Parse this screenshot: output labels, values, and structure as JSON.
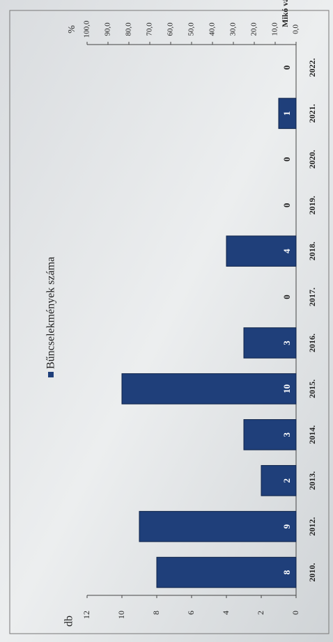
{
  "chart_data": {
    "type": "bar",
    "title": "Mikó város",
    "categories": [
      "2010.",
      "2012.",
      "2013.",
      "2014.",
      "2015.",
      "2016.",
      "2017.",
      "2018.",
      "2019.",
      "2020.",
      "2021.",
      "2022."
    ],
    "series": [
      {
        "name": "Bűncselekmények száma",
        "color": "#1f3f7a",
        "values": [
          8,
          9,
          2,
          3,
          10,
          3,
          0,
          4,
          0,
          0,
          1,
          0
        ]
      }
    ],
    "y_label": "db",
    "ylim": [
      0,
      12
    ],
    "yticks": [
      0,
      2,
      4,
      6,
      8,
      10,
      12
    ],
    "y2_label": "%",
    "y2lim": [
      0,
      100
    ],
    "y2ticks": [
      {
        "value": 0,
        "label": "0,0"
      },
      {
        "value": 10,
        "label": "10,0"
      },
      {
        "value": 20,
        "label": "20,0"
      },
      {
        "value": 30,
        "label": "30,0"
      },
      {
        "value": 40,
        "label": "40,0"
      },
      {
        "value": 50,
        "label": "50,0"
      },
      {
        "value": 60,
        "label": "60,0"
      },
      {
        "value": 70,
        "label": "70,0"
      },
      {
        "value": 80,
        "label": "80,0"
      },
      {
        "value": 90,
        "label": "90,0"
      },
      {
        "value": 100,
        "label": "100,0"
      }
    ]
  }
}
